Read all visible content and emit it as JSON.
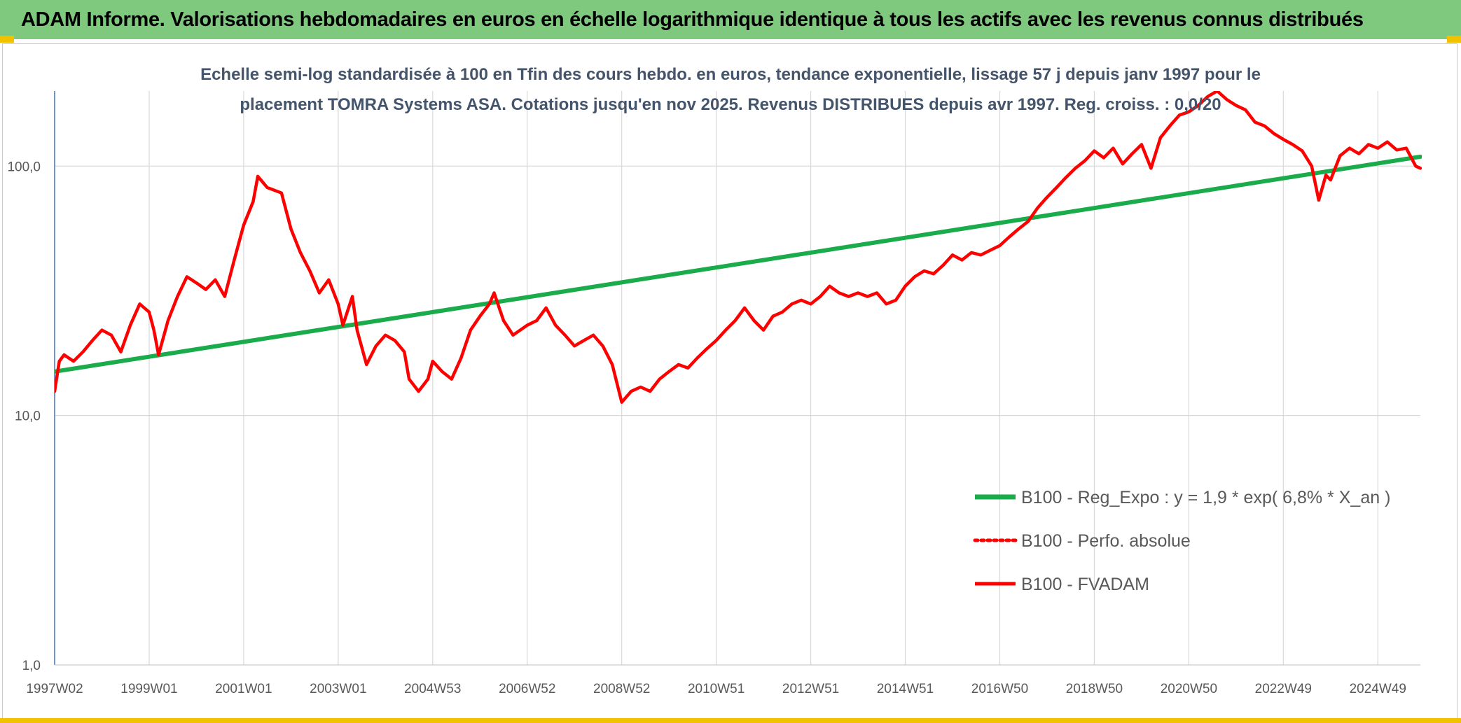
{
  "header": {
    "title": "ADAM Informe. Valorisations hebdomadaires en euros en échelle logarithmique identique à tous les actifs avec les revenus connus distribués"
  },
  "colors": {
    "banner": "#7fc97f",
    "accent": "#f2c100",
    "regression": "#1aab4b",
    "price": "#ff0000",
    "grid": "#d9d9d9",
    "axis": "#4472c4"
  },
  "chart_data": {
    "type": "line",
    "yscale": "log",
    "title_lines": [
      "Echelle semi-log standardisée à 100 en Tfin des cours hebdo. en euros, tendance exponentielle, lissage 57 j depuis janv 1997 pour le",
      "placement TOMRA Systems ASA. Cotations jusqu'en nov 2025. Revenus DISTRIBUES depuis avr 1997. Reg. croiss. : 0,0/20"
    ],
    "ylim": [
      1,
      200
    ],
    "y_ticks": [
      {
        "value": 1,
        "label": "1,0"
      },
      {
        "value": 10,
        "label": "10,0"
      },
      {
        "value": 100,
        "label": "100,0"
      }
    ],
    "xlim": [
      1997.0,
      2025.9
    ],
    "x_ticks": [
      {
        "t": 1997.0,
        "label": "1997W02"
      },
      {
        "t": 1999.0,
        "label": "1999W01"
      },
      {
        "t": 2001.0,
        "label": "2001W01"
      },
      {
        "t": 2003.0,
        "label": "2003W01"
      },
      {
        "t": 2005.0,
        "label": "2004W53"
      },
      {
        "t": 2007.0,
        "label": "2006W52"
      },
      {
        "t": 2009.0,
        "label": "2008W52"
      },
      {
        "t": 2011.0,
        "label": "2010W51"
      },
      {
        "t": 2013.0,
        "label": "2012W51"
      },
      {
        "t": 2015.0,
        "label": "2014W51"
      },
      {
        "t": 2017.0,
        "label": "2016W50"
      },
      {
        "t": 2019.0,
        "label": "2018W50"
      },
      {
        "t": 2021.0,
        "label": "2020W50"
      },
      {
        "t": 2023.0,
        "label": "2022W49"
      },
      {
        "t": 2025.0,
        "label": "2024W49"
      }
    ],
    "series": [
      {
        "name": "B100 - Reg_Expo : y = 1,9 * exp( 6,8% *  X_an )",
        "style": "solid-thick",
        "color": "#1aab4b",
        "points": [
          [
            1997.0,
            15.0
          ],
          [
            2025.9,
            109.0
          ]
        ]
      },
      {
        "name": "B100 - Perfo. absolue",
        "style": "dotted",
        "color": "#ff0000",
        "points": []
      },
      {
        "name": "B100 - FVADAM",
        "style": "solid",
        "color": "#ff0000",
        "points": [
          [
            1997.0,
            12.5
          ],
          [
            1997.1,
            16.5
          ],
          [
            1997.2,
            17.5
          ],
          [
            1997.4,
            16.5
          ],
          [
            1997.6,
            18
          ],
          [
            1997.8,
            20
          ],
          [
            1998.0,
            22
          ],
          [
            1998.2,
            21
          ],
          [
            1998.4,
            18
          ],
          [
            1998.6,
            23
          ],
          [
            1998.8,
            28
          ],
          [
            1999.0,
            26
          ],
          [
            1999.1,
            22
          ],
          [
            1999.2,
            17.5
          ],
          [
            1999.4,
            24
          ],
          [
            1999.6,
            30
          ],
          [
            1999.8,
            36
          ],
          [
            2000.0,
            34
          ],
          [
            2000.2,
            32
          ],
          [
            2000.4,
            35
          ],
          [
            2000.6,
            30
          ],
          [
            2000.8,
            42
          ],
          [
            2001.0,
            58
          ],
          [
            2001.2,
            72
          ],
          [
            2001.3,
            91
          ],
          [
            2001.5,
            82
          ],
          [
            2001.8,
            78
          ],
          [
            2002.0,
            56
          ],
          [
            2002.2,
            45
          ],
          [
            2002.4,
            38
          ],
          [
            2002.6,
            31
          ],
          [
            2002.8,
            35
          ],
          [
            2003.0,
            28
          ],
          [
            2003.1,
            23
          ],
          [
            2003.3,
            30
          ],
          [
            2003.4,
            22
          ],
          [
            2003.6,
            16
          ],
          [
            2003.8,
            19
          ],
          [
            2004.0,
            21
          ],
          [
            2004.2,
            20
          ],
          [
            2004.4,
            18
          ],
          [
            2004.5,
            14
          ],
          [
            2004.7,
            12.5
          ],
          [
            2004.9,
            14
          ],
          [
            2005.0,
            16.5
          ],
          [
            2005.2,
            15
          ],
          [
            2005.4,
            14
          ],
          [
            2005.6,
            17
          ],
          [
            2005.8,
            22
          ],
          [
            2006.0,
            25
          ],
          [
            2006.2,
            28
          ],
          [
            2006.3,
            31
          ],
          [
            2006.5,
            24
          ],
          [
            2006.7,
            21
          ],
          [
            2007.0,
            23
          ],
          [
            2007.2,
            24
          ],
          [
            2007.4,
            27
          ],
          [
            2007.6,
            23
          ],
          [
            2007.8,
            21
          ],
          [
            2008.0,
            19
          ],
          [
            2008.2,
            20
          ],
          [
            2008.4,
            21
          ],
          [
            2008.6,
            19
          ],
          [
            2008.8,
            16
          ],
          [
            2009.0,
            11.3
          ],
          [
            2009.2,
            12.5
          ],
          [
            2009.4,
            13
          ],
          [
            2009.6,
            12.5
          ],
          [
            2009.8,
            14
          ],
          [
            2010.0,
            15
          ],
          [
            2010.2,
            16
          ],
          [
            2010.4,
            15.5
          ],
          [
            2010.6,
            17
          ],
          [
            2010.8,
            18.5
          ],
          [
            2011.0,
            20
          ],
          [
            2011.2,
            22
          ],
          [
            2011.4,
            24
          ],
          [
            2011.6,
            27
          ],
          [
            2011.8,
            24
          ],
          [
            2012.0,
            22
          ],
          [
            2012.2,
            25
          ],
          [
            2012.4,
            26
          ],
          [
            2012.6,
            28
          ],
          [
            2012.8,
            29
          ],
          [
            2013.0,
            28
          ],
          [
            2013.2,
            30
          ],
          [
            2013.4,
            33
          ],
          [
            2013.6,
            31
          ],
          [
            2013.8,
            30
          ],
          [
            2014.0,
            31
          ],
          [
            2014.2,
            30
          ],
          [
            2014.4,
            31
          ],
          [
            2014.6,
            28
          ],
          [
            2014.8,
            29
          ],
          [
            2015.0,
            33
          ],
          [
            2015.2,
            36
          ],
          [
            2015.4,
            38
          ],
          [
            2015.6,
            37
          ],
          [
            2015.8,
            40
          ],
          [
            2016.0,
            44
          ],
          [
            2016.2,
            42
          ],
          [
            2016.4,
            45
          ],
          [
            2016.6,
            44
          ],
          [
            2016.8,
            46
          ],
          [
            2017.0,
            48
          ],
          [
            2017.2,
            52
          ],
          [
            2017.4,
            56
          ],
          [
            2017.6,
            60
          ],
          [
            2017.8,
            68
          ],
          [
            2018.0,
            75
          ],
          [
            2018.2,
            82
          ],
          [
            2018.4,
            90
          ],
          [
            2018.6,
            98
          ],
          [
            2018.8,
            105
          ],
          [
            2019.0,
            115
          ],
          [
            2019.2,
            108
          ],
          [
            2019.4,
            118
          ],
          [
            2019.6,
            102
          ],
          [
            2019.8,
            112
          ],
          [
            2020.0,
            122
          ],
          [
            2020.2,
            98
          ],
          [
            2020.4,
            130
          ],
          [
            2020.6,
            145
          ],
          [
            2020.8,
            160
          ],
          [
            2021.0,
            165
          ],
          [
            2021.2,
            175
          ],
          [
            2021.4,
            190
          ],
          [
            2021.6,
            200
          ],
          [
            2021.8,
            185
          ],
          [
            2022.0,
            175
          ],
          [
            2022.2,
            168
          ],
          [
            2022.4,
            150
          ],
          [
            2022.6,
            145
          ],
          [
            2022.8,
            135
          ],
          [
            2023.0,
            128
          ],
          [
            2023.2,
            122
          ],
          [
            2023.4,
            115
          ],
          [
            2023.6,
            100
          ],
          [
            2023.75,
            73
          ],
          [
            2023.9,
            92
          ],
          [
            2024.0,
            88
          ],
          [
            2024.2,
            110
          ],
          [
            2024.4,
            118
          ],
          [
            2024.6,
            112
          ],
          [
            2024.8,
            122
          ],
          [
            2025.0,
            118
          ],
          [
            2025.2,
            125
          ],
          [
            2025.4,
            116
          ],
          [
            2025.6,
            118
          ],
          [
            2025.8,
            100
          ],
          [
            2025.9,
            98
          ]
        ]
      }
    ],
    "legend": {
      "position": "bottom-right",
      "entries": [
        {
          "label": "B100 - Reg_Expo : y = 1,9 * exp( 6,8% *  X_an )",
          "style": "solid-thick",
          "color": "#1aab4b"
        },
        {
          "label": "B100 - Perfo. absolue",
          "style": "dotted",
          "color": "#ff0000"
        },
        {
          "label": "B100 - FVADAM",
          "style": "solid",
          "color": "#ff0000"
        }
      ]
    }
  }
}
